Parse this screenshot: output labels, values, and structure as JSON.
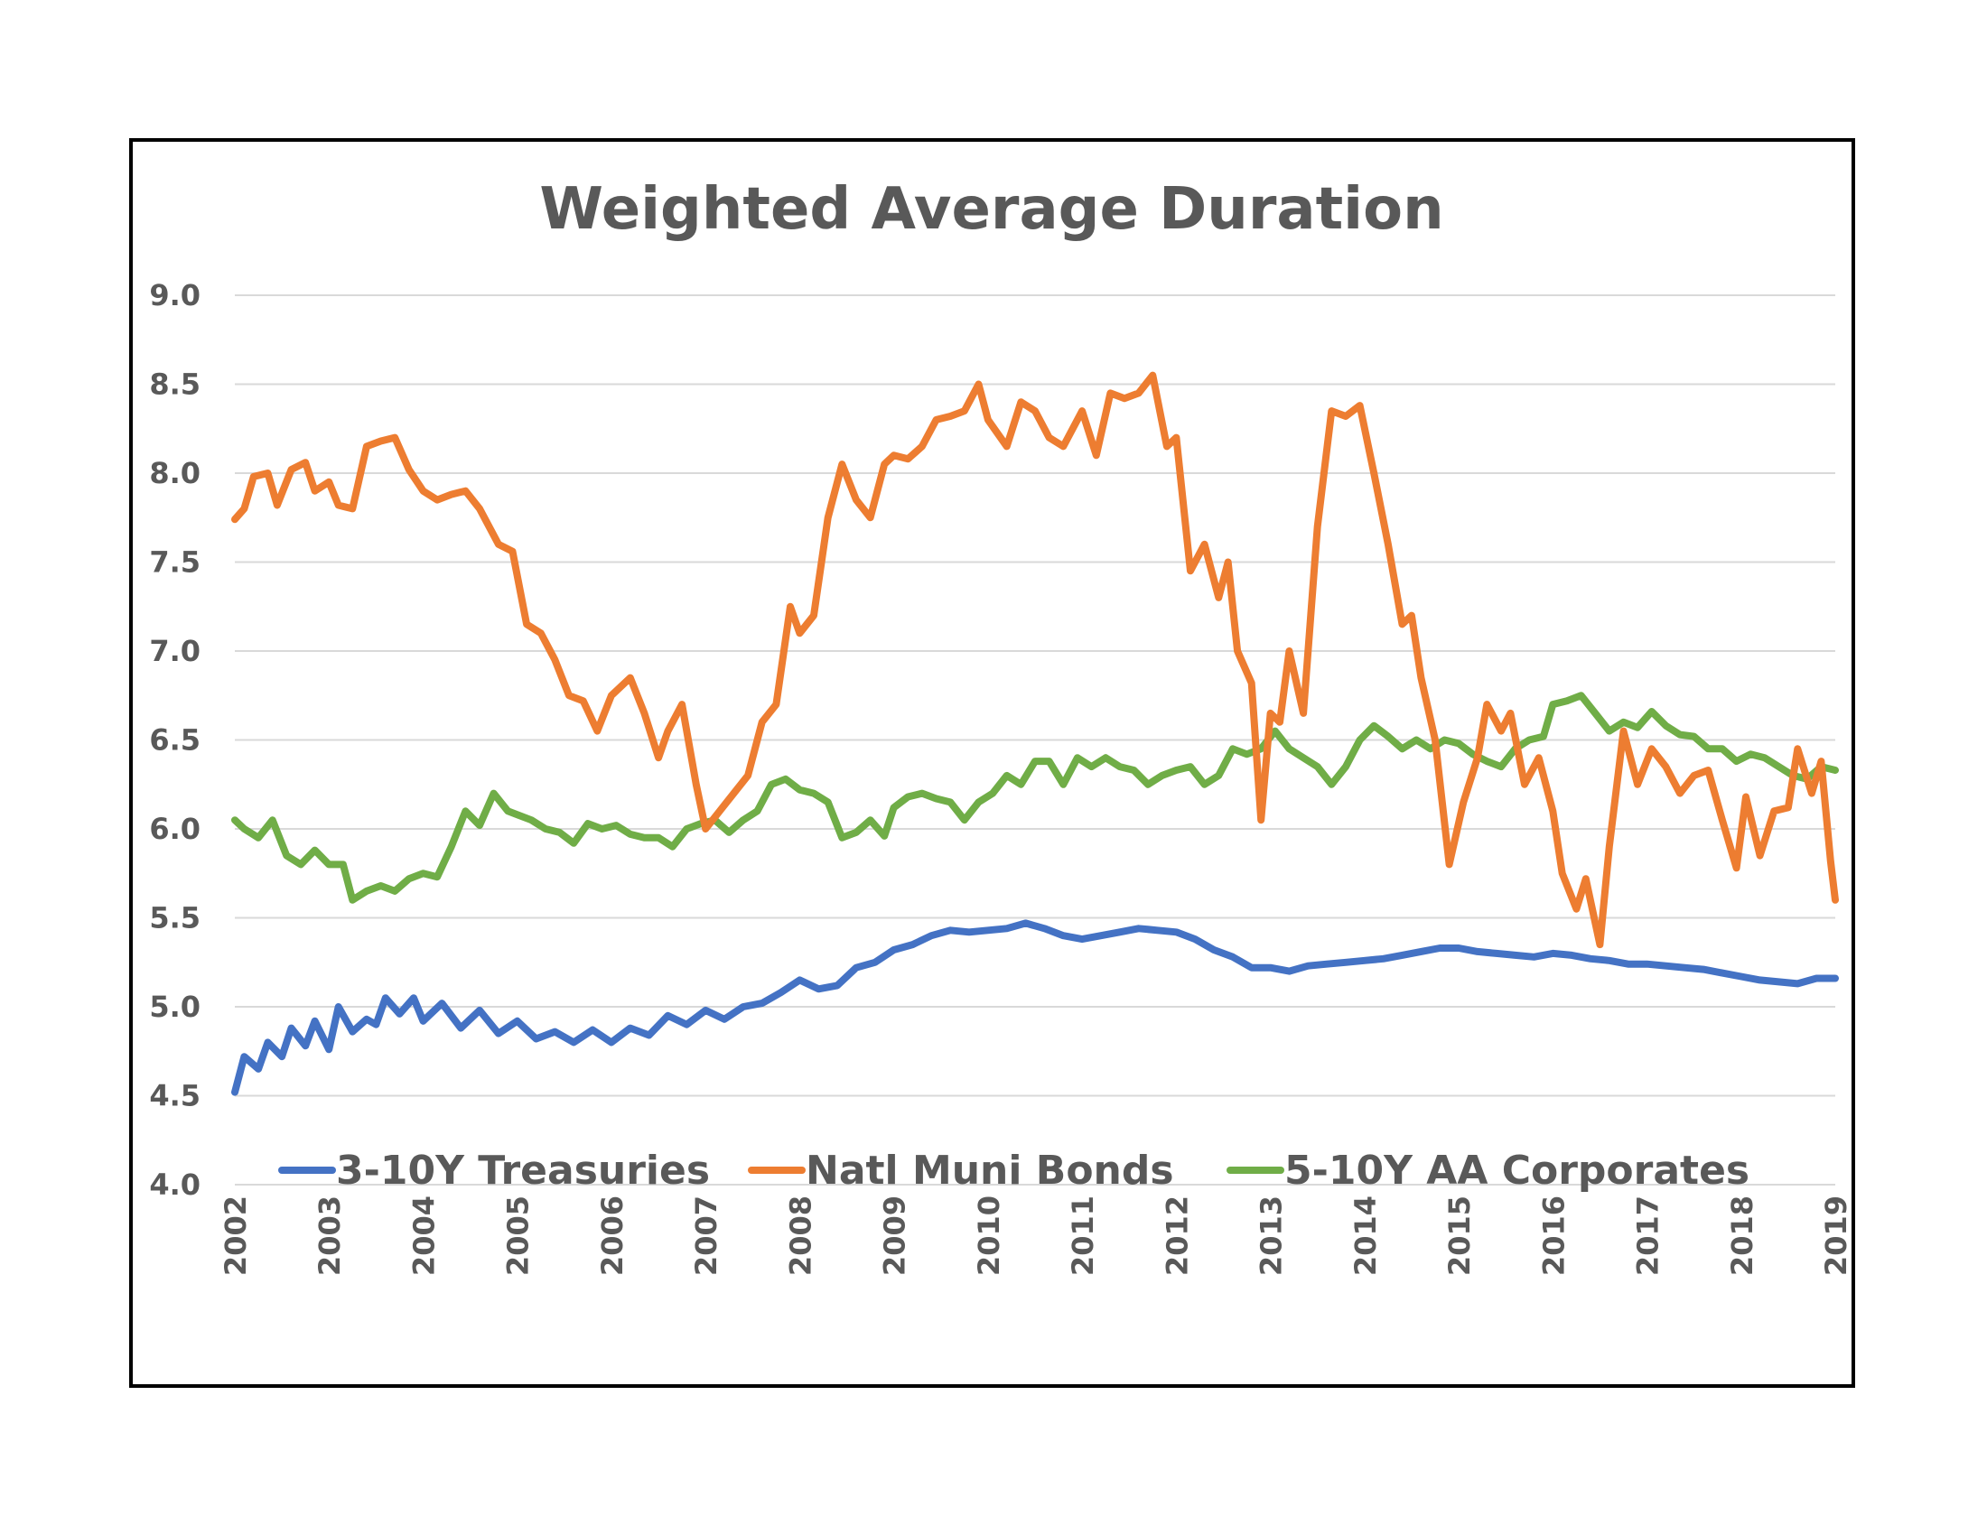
{
  "chart_data": {
    "type": "line",
    "title": "Weighted Average Duration",
    "xlabel": "",
    "ylabel": "",
    "xlim": [
      2002,
      2019
    ],
    "ylim": [
      4.0,
      9.0
    ],
    "ytick_labels": [
      "4.0",
      "4.5",
      "5.0",
      "5.5",
      "6.0",
      "6.5",
      "7.0",
      "7.5",
      "8.0",
      "8.5",
      "9.0"
    ],
    "xtick_labels": [
      "2002",
      "2003",
      "2004",
      "2005",
      "2006",
      "2007",
      "2008",
      "2009",
      "2010",
      "2011",
      "2012",
      "2013",
      "2014",
      "2015",
      "2016",
      "2017",
      "2018",
      "2019"
    ],
    "grid": true,
    "legend_position": "bottom",
    "series": [
      {
        "name": "3-10Y Treasuries",
        "color": "#4472C4",
        "x": [
          2002.0,
          2002.1,
          2002.25,
          2002.35,
          2002.5,
          2002.6,
          2002.75,
          2002.85,
          2003.0,
          2003.1,
          2003.25,
          2003.4,
          2003.5,
          2003.6,
          2003.75,
          2003.9,
          2004.0,
          2004.2,
          2004.4,
          2004.6,
          2004.8,
          2005.0,
          2005.2,
          2005.4,
          2005.6,
          2005.8,
          2006.0,
          2006.2,
          2006.4,
          2006.6,
          2006.8,
          2007.0,
          2007.2,
          2007.4,
          2007.6,
          2007.8,
          2008.0,
          2008.2,
          2008.4,
          2008.6,
          2008.8,
          2009.0,
          2009.2,
          2009.4,
          2009.6,
          2009.8,
          2010.0,
          2010.2,
          2010.4,
          2010.6,
          2010.8,
          2011.0,
          2011.2,
          2011.4,
          2011.6,
          2011.8,
          2012.0,
          2012.2,
          2012.4,
          2012.6,
          2012.8,
          2013.0,
          2013.2,
          2013.4,
          2013.6,
          2013.8,
          2014.0,
          2014.2,
          2014.4,
          2014.6,
          2014.8,
          2015.0,
          2015.2,
          2015.4,
          2015.6,
          2015.8,
          2016.0,
          2016.2,
          2016.4,
          2016.6,
          2016.8,
          2017.0,
          2017.2,
          2017.4,
          2017.6,
          2017.8,
          2018.0,
          2018.2,
          2018.4,
          2018.6,
          2018.8,
          2019.0
        ],
        "values": [
          4.52,
          4.72,
          4.65,
          4.8,
          4.72,
          4.88,
          4.78,
          4.92,
          4.76,
          5.0,
          4.86,
          4.93,
          4.9,
          5.05,
          4.96,
          5.05,
          4.92,
          5.02,
          4.88,
          4.98,
          4.85,
          4.92,
          4.82,
          4.86,
          4.8,
          4.87,
          4.8,
          4.88,
          4.84,
          4.95,
          4.9,
          4.98,
          4.93,
          5.0,
          5.02,
          5.08,
          5.15,
          5.1,
          5.12,
          5.22,
          5.25,
          5.32,
          5.35,
          5.4,
          5.43,
          5.42,
          5.43,
          5.44,
          5.47,
          5.44,
          5.4,
          5.38,
          5.4,
          5.42,
          5.44,
          5.43,
          5.42,
          5.38,
          5.32,
          5.28,
          5.22,
          5.22,
          5.2,
          5.23,
          5.24,
          5.25,
          5.26,
          5.27,
          5.29,
          5.31,
          5.33,
          5.33,
          5.31,
          5.3,
          5.29,
          5.28,
          5.3,
          5.29,
          5.27,
          5.26,
          5.24,
          5.24,
          5.23,
          5.22,
          5.21,
          5.19,
          5.17,
          5.15,
          5.14,
          5.13,
          5.16,
          5.16
        ]
      },
      {
        "name": "Natl Muni Bonds",
        "color": "#ED7D31",
        "x": [
          2002.0,
          2002.1,
          2002.2,
          2002.35,
          2002.45,
          2002.6,
          2002.75,
          2002.85,
          2003.0,
          2003.1,
          2003.25,
          2003.4,
          2003.55,
          2003.7,
          2003.85,
          2004.0,
          2004.15,
          2004.3,
          2004.45,
          2004.6,
          2004.8,
          2004.95,
          2005.1,
          2005.25,
          2005.4,
          2005.55,
          2005.7,
          2005.85,
          2006.0,
          2006.2,
          2006.35,
          2006.5,
          2006.6,
          2006.75,
          2006.9,
          2007.0,
          2007.15,
          2007.3,
          2007.45,
          2007.6,
          2007.75,
          2007.9,
          2008.0,
          2008.15,
          2008.3,
          2008.45,
          2008.6,
          2008.75,
          2008.9,
          2009.0,
          2009.15,
          2009.3,
          2009.45,
          2009.6,
          2009.75,
          2009.9,
          2010.0,
          2010.2,
          2010.35,
          2010.5,
          2010.65,
          2010.8,
          2011.0,
          2011.15,
          2011.3,
          2011.45,
          2011.6,
          2011.75,
          2011.9,
          2012.0,
          2012.15,
          2012.3,
          2012.45,
          2012.55,
          2012.65,
          2012.8,
          2012.9,
          2013.0,
          2013.1,
          2013.2,
          2013.35,
          2013.5,
          2013.65,
          2013.8,
          2013.95,
          2014.1,
          2014.25,
          2014.4,
          2014.5,
          2014.6,
          2014.75,
          2014.9,
          2015.05,
          2015.2,
          2015.3,
          2015.45,
          2015.55,
          2015.7,
          2015.85,
          2016.0,
          2016.1,
          2016.25,
          2016.35,
          2016.5,
          2016.6,
          2016.75,
          2016.9,
          2017.05,
          2017.2,
          2017.35,
          2017.5,
          2017.65,
          2017.8,
          2017.95,
          2018.05,
          2018.2,
          2018.35,
          2018.5,
          2018.6,
          2018.75,
          2018.85,
          2018.95,
          2019.0
        ],
        "values": [
          7.74,
          7.8,
          7.98,
          8.0,
          7.82,
          8.02,
          8.06,
          7.9,
          7.95,
          7.82,
          7.8,
          8.15,
          8.18,
          8.2,
          8.02,
          7.9,
          7.85,
          7.88,
          7.9,
          7.8,
          7.6,
          7.56,
          7.15,
          7.1,
          6.95,
          6.75,
          6.72,
          6.55,
          6.75,
          6.85,
          6.65,
          6.4,
          6.55,
          6.7,
          6.25,
          6.0,
          6.1,
          6.2,
          6.3,
          6.6,
          6.7,
          7.25,
          7.1,
          7.2,
          7.75,
          8.05,
          7.85,
          7.75,
          8.05,
          8.1,
          8.08,
          8.15,
          8.3,
          8.32,
          8.35,
          8.5,
          8.3,
          8.15,
          8.4,
          8.35,
          8.2,
          8.15,
          8.35,
          8.1,
          8.45,
          8.42,
          8.45,
          8.55,
          8.15,
          8.2,
          7.45,
          7.6,
          7.3,
          7.5,
          7.0,
          6.82,
          6.05,
          6.65,
          6.6,
          7.0,
          6.65,
          7.7,
          8.35,
          8.32,
          8.38,
          8.0,
          7.6,
          7.15,
          7.2,
          6.85,
          6.5,
          5.8,
          6.15,
          6.4,
          6.7,
          6.55,
          6.65,
          6.25,
          6.4,
          6.1,
          5.75,
          5.55,
          5.72,
          5.35,
          5.9,
          6.55,
          6.25,
          6.45,
          6.35,
          6.2,
          6.3,
          6.33,
          6.05,
          5.78,
          6.18,
          5.85,
          6.1,
          6.12,
          6.45,
          6.2,
          6.38,
          5.82,
          5.6
        ]
      },
      {
        "name": "5-10Y AA Corporates",
        "color": "#70AD47",
        "x": [
          2002.0,
          2002.1,
          2002.25,
          2002.4,
          2002.55,
          2002.7,
          2002.85,
          2003.0,
          2003.15,
          2003.25,
          2003.4,
          2003.55,
          2003.7,
          2003.85,
          2004.0,
          2004.15,
          2004.3,
          2004.45,
          2004.6,
          2004.75,
          2004.9,
          2005.0,
          2005.15,
          2005.3,
          2005.45,
          2005.6,
          2005.75,
          2005.9,
          2006.05,
          2006.2,
          2006.35,
          2006.5,
          2006.65,
          2006.8,
          2006.95,
          2007.1,
          2007.25,
          2007.4,
          2007.55,
          2007.7,
          2007.85,
          2008.0,
          2008.15,
          2008.3,
          2008.45,
          2008.6,
          2008.75,
          2008.9,
          2009.0,
          2009.15,
          2009.3,
          2009.45,
          2009.6,
          2009.75,
          2009.9,
          2010.05,
          2010.2,
          2010.35,
          2010.5,
          2010.65,
          2010.8,
          2010.95,
          2011.1,
          2011.25,
          2011.4,
          2011.55,
          2011.7,
          2011.85,
          2012.0,
          2012.15,
          2012.3,
          2012.45,
          2012.6,
          2012.75,
          2012.9,
          2013.05,
          2013.2,
          2013.35,
          2013.5,
          2013.65,
          2013.8,
          2013.95,
          2014.1,
          2014.25,
          2014.4,
          2014.55,
          2014.7,
          2014.85,
          2015.0,
          2015.15,
          2015.3,
          2015.45,
          2015.6,
          2015.75,
          2015.9,
          2016.0,
          2016.15,
          2016.3,
          2016.45,
          2016.6,
          2016.75,
          2016.9,
          2017.05,
          2017.2,
          2017.35,
          2017.5,
          2017.65,
          2017.8,
          2017.95,
          2018.1,
          2018.25,
          2018.4,
          2018.55,
          2018.7,
          2018.85,
          2019.0
        ],
        "values": [
          6.05,
          6.0,
          5.95,
          6.05,
          5.85,
          5.8,
          5.88,
          5.8,
          5.8,
          5.6,
          5.65,
          5.68,
          5.65,
          5.72,
          5.75,
          5.73,
          5.9,
          6.1,
          6.02,
          6.2,
          6.1,
          6.08,
          6.05,
          6.0,
          5.98,
          5.92,
          6.03,
          6.0,
          6.02,
          5.97,
          5.95,
          5.95,
          5.9,
          6.0,
          6.03,
          6.05,
          5.98,
          6.05,
          6.1,
          6.25,
          6.28,
          6.22,
          6.2,
          6.15,
          5.95,
          5.98,
          6.05,
          5.96,
          6.12,
          6.18,
          6.2,
          6.17,
          6.15,
          6.05,
          6.15,
          6.2,
          6.3,
          6.25,
          6.38,
          6.38,
          6.25,
          6.4,
          6.35,
          6.4,
          6.35,
          6.33,
          6.25,
          6.3,
          6.33,
          6.35,
          6.25,
          6.3,
          6.45,
          6.42,
          6.45,
          6.55,
          6.45,
          6.4,
          6.35,
          6.25,
          6.35,
          6.5,
          6.58,
          6.52,
          6.45,
          6.5,
          6.45,
          6.5,
          6.48,
          6.42,
          6.38,
          6.35,
          6.45,
          6.5,
          6.52,
          6.7,
          6.72,
          6.75,
          6.65,
          6.55,
          6.6,
          6.57,
          6.66,
          6.58,
          6.53,
          6.52,
          6.45,
          6.45,
          6.38,
          6.42,
          6.4,
          6.35,
          6.3,
          6.28,
          6.35,
          6.33
        ]
      }
    ]
  }
}
